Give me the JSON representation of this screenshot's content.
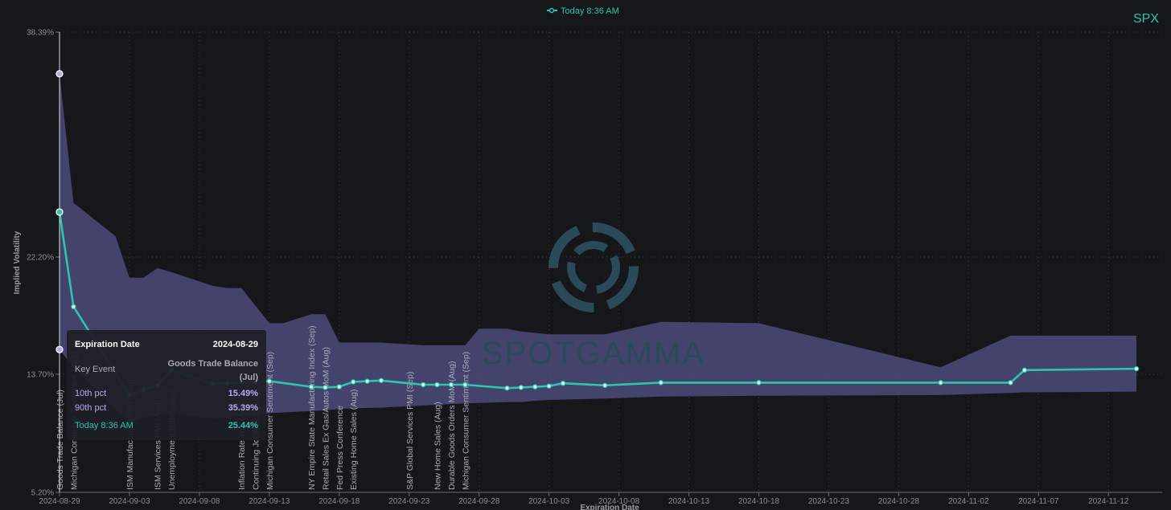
{
  "symbol": "SPX",
  "watermark": "SPOTGAMMA",
  "legend": {
    "series_label": "Today 8:36 AM"
  },
  "colors": {
    "today": "#2ec4b0",
    "band": "#4a4a78",
    "marker": "#b3aef0"
  },
  "icons": {
    "logo": "spotgamma-logo-icon"
  },
  "chart_data": {
    "type": "line",
    "xlabel": "Expiration Date",
    "ylabel": "Implied Volatility",
    "y_ticks": [
      "38.39%",
      "22.20%",
      "13.70%",
      "5.20%"
    ],
    "x_ticks": [
      "2024-08-29",
      "2024-09-03",
      "2024-09-08",
      "2024-09-13",
      "2024-09-18",
      "2024-09-23",
      "2024-09-28",
      "2024-10-03",
      "2024-10-08",
      "2024-10-13",
      "2024-10-18",
      "2024-10-23",
      "2024-10-28",
      "2024-11-02",
      "2024-11-07",
      "2024-11-12"
    ],
    "grid": true,
    "series": [
      {
        "name": "Today 8:36 AM",
        "points": [
          [
            "2024-08-29",
            25.44
          ],
          [
            "2024-08-30",
            18.6
          ],
          [
            "2024-09-03",
            12.2
          ],
          [
            "2024-09-04",
            12.6
          ],
          [
            "2024-09-05",
            12.9
          ],
          [
            "2024-09-06",
            14.0
          ],
          [
            "2024-09-09",
            13.0
          ],
          [
            "2024-09-10",
            13.05
          ],
          [
            "2024-09-12",
            13.15
          ],
          [
            "2024-09-13",
            13.2
          ],
          [
            "2024-09-16",
            12.8
          ],
          [
            "2024-09-17",
            12.75
          ],
          [
            "2024-09-18",
            12.8
          ],
          [
            "2024-09-19",
            13.15
          ],
          [
            "2024-09-20",
            13.2
          ],
          [
            "2024-09-21",
            13.25
          ],
          [
            "2024-09-24",
            12.95
          ],
          [
            "2024-09-25",
            12.95
          ],
          [
            "2024-09-26",
            12.95
          ],
          [
            "2024-09-27",
            12.95
          ],
          [
            "2024-09-30",
            12.7
          ],
          [
            "2024-10-01",
            12.75
          ],
          [
            "2024-10-02",
            12.8
          ],
          [
            "2024-10-03",
            12.85
          ],
          [
            "2024-10-04",
            13.05
          ],
          [
            "2024-10-07",
            12.9
          ],
          [
            "2024-10-11",
            13.1
          ],
          [
            "2024-10-18",
            13.1
          ],
          [
            "2024-10-31",
            13.1
          ],
          [
            "2024-11-05",
            13.1
          ],
          [
            "2024-11-06",
            14.0
          ],
          [
            "2024-11-14",
            14.1
          ]
        ]
      }
    ],
    "band": {
      "lower": [
        [
          "2024-08-29",
          15.49
        ],
        [
          "2024-08-30",
          14.2
        ],
        [
          "2024-09-03",
          10.2
        ],
        [
          "2024-09-04",
          10.6
        ],
        [
          "2024-09-05",
          10.8
        ],
        [
          "2024-09-06",
          10.9
        ],
        [
          "2024-09-09",
          10.5
        ],
        [
          "2024-09-10",
          10.6
        ],
        [
          "2024-09-12",
          10.8
        ],
        [
          "2024-09-13",
          10.9
        ],
        [
          "2024-09-16",
          11.05
        ],
        [
          "2024-09-17",
          11.1
        ],
        [
          "2024-09-18",
          11.2
        ],
        [
          "2024-09-19",
          11.25
        ],
        [
          "2024-09-21",
          11.3
        ],
        [
          "2024-09-24",
          11.45
        ],
        [
          "2024-09-27",
          11.6
        ],
        [
          "2024-09-30",
          11.7
        ],
        [
          "2024-10-01",
          11.7
        ],
        [
          "2024-10-02",
          11.8
        ],
        [
          "2024-10-03",
          11.85
        ],
        [
          "2024-10-07",
          11.95
        ],
        [
          "2024-10-11",
          12.1
        ],
        [
          "2024-10-18",
          12.15
        ],
        [
          "2024-10-31",
          12.2
        ],
        [
          "2024-11-05",
          12.35
        ],
        [
          "2024-11-06",
          12.4
        ],
        [
          "2024-11-14",
          12.45
        ]
      ],
      "upper": [
        [
          "2024-08-29",
          35.39
        ],
        [
          "2024-08-30",
          26.1
        ],
        [
          "2024-09-02",
          23.7
        ],
        [
          "2024-09-03",
          20.7
        ],
        [
          "2024-09-04",
          20.7
        ],
        [
          "2024-09-05",
          21.4
        ],
        [
          "2024-09-06",
          21.1
        ],
        [
          "2024-09-09",
          20.1
        ],
        [
          "2024-09-10",
          19.95
        ],
        [
          "2024-09-11",
          19.95
        ],
        [
          "2024-09-13",
          17.4
        ],
        [
          "2024-09-14",
          17.4
        ],
        [
          "2024-09-16",
          18.05
        ],
        [
          "2024-09-17",
          18.05
        ],
        [
          "2024-09-18",
          16.0
        ],
        [
          "2024-09-21",
          16.0
        ],
        [
          "2024-09-24",
          15.8
        ],
        [
          "2024-09-27",
          15.8
        ],
        [
          "2024-09-28",
          17.0
        ],
        [
          "2024-09-30",
          17.0
        ],
        [
          "2024-10-01",
          16.8
        ],
        [
          "2024-10-03",
          16.6
        ],
        [
          "2024-10-07",
          16.6
        ],
        [
          "2024-10-11",
          17.5
        ],
        [
          "2024-10-18",
          17.4
        ],
        [
          "2024-10-31",
          14.2
        ],
        [
          "2024-11-05",
          16.5
        ],
        [
          "2024-11-14",
          16.5
        ]
      ]
    },
    "events": [
      {
        "date": "2024-08-29",
        "label": "Goods Trade Balance (Jul)"
      },
      {
        "date": "2024-08-30",
        "label": "Michigan Consumer Sentiment (Aug)"
      },
      {
        "date": "2024-09-03",
        "label": "ISM Manufacturing PMI (Aug)"
      },
      {
        "date": "2024-09-05",
        "label": "ISM Services PMI (Aug)"
      },
      {
        "date": "2024-09-06",
        "label": "Unemployment Rate (Aug)"
      },
      {
        "date": "2024-09-11",
        "label": "Inflation Rate YoY (Aug)"
      },
      {
        "date": "2024-09-12",
        "label": "Continuing Jobless Claims"
      },
      {
        "date": "2024-09-13",
        "label": "Michigan Consumer Sentiment (Sep)"
      },
      {
        "date": "2024-09-16",
        "label": "NY Empire State Manufacturing Index (Sep)"
      },
      {
        "date": "2024-09-17",
        "label": "Retail Sales Ex Gas/Autos MoM (Aug)"
      },
      {
        "date": "2024-09-18",
        "label": "Fed Press Conference"
      },
      {
        "date": "2024-09-19",
        "label": "Existing Home Sales (Aug)"
      },
      {
        "date": "2024-09-23",
        "label": "S&P Global Services PMI (Sep)"
      },
      {
        "date": "2024-09-25",
        "label": "New Home Sales (Aug)"
      },
      {
        "date": "2024-09-26",
        "label": "Durable Goods Orders MoM (Aug)"
      },
      {
        "date": "2024-09-27",
        "label": "Michigan Consumer Sentiment (Sep)"
      }
    ]
  },
  "tooltip": {
    "title": "Expiration Date",
    "date": "2024-08-29",
    "key_event_label": "Key Event",
    "key_event_line1": "Goods Trade Balance",
    "key_event_line2": "(Jul)",
    "p10_label": "10th pct",
    "p10_value": "15.49%",
    "p90_label": "90th pct",
    "p90_value": "35.39%",
    "today_label": "Today 8:36 AM",
    "today_value": "25.44%"
  }
}
